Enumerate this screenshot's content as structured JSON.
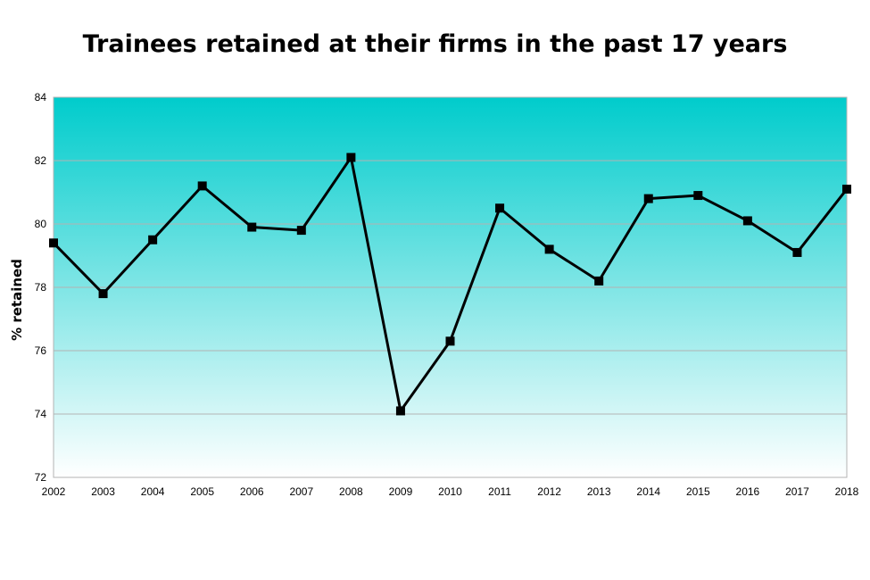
{
  "chart_data": {
    "type": "line",
    "title": "Trainees retained at their firms in the past 17 years",
    "xlabel": "",
    "ylabel": "% retained",
    "ylim": [
      72,
      84
    ],
    "yticks": [
      "72",
      "74",
      "76",
      "78",
      "80",
      "82",
      "84"
    ],
    "categories": [
      "2002",
      "2003",
      "2004",
      "2005",
      "2006",
      "2007",
      "2008",
      "2009",
      "2010",
      "2011",
      "2012",
      "2013",
      "2014",
      "2015",
      "2016",
      "2017",
      "2018"
    ],
    "series": [
      {
        "values": [
          79.4,
          77.8,
          79.5,
          81.2,
          79.9,
          79.8,
          82.1,
          74.1,
          76.3,
          80.5,
          79.2,
          78.2,
          80.8,
          80.9,
          80.1,
          79.1,
          81.1
        ]
      }
    ],
    "grid": true,
    "legend": "none",
    "colors": {
      "gradient_top": "#00cccc",
      "gradient_bottom": "#ffffff",
      "line": "#000000",
      "grid": "#b3b3b3"
    }
  }
}
